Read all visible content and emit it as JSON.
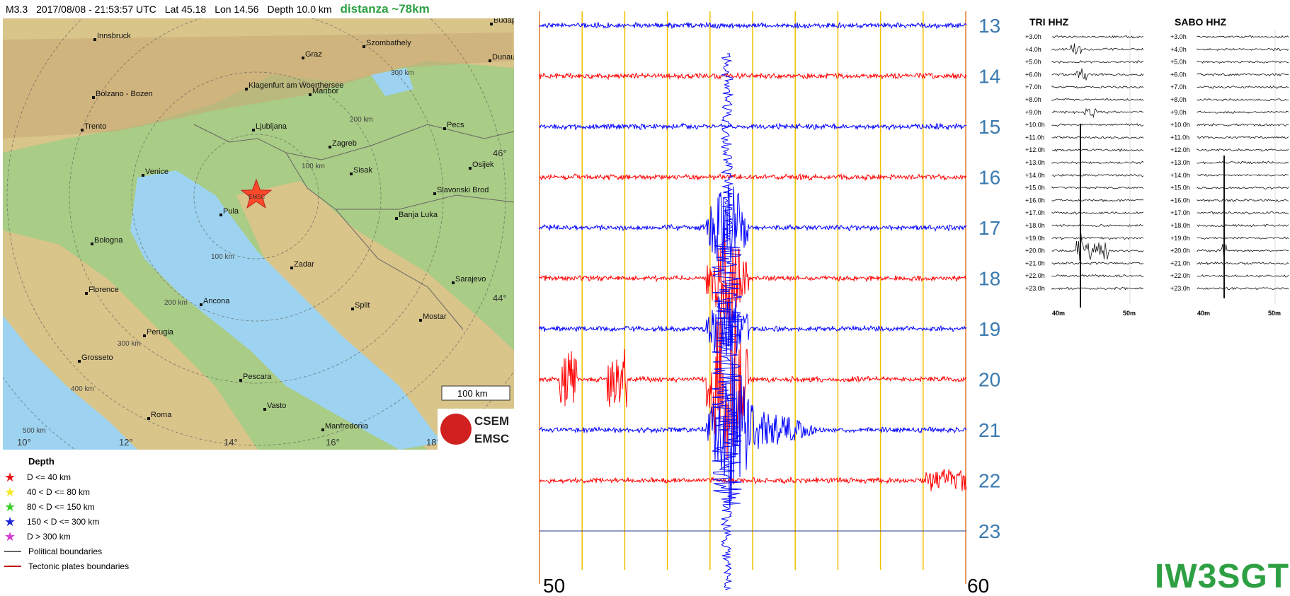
{
  "header": {
    "magnitude": "M3.3",
    "datetime": "2017/08/08 - 21:53:57 UTC",
    "lat": "Lat 45.18",
    "lon": "Lon 14.56",
    "depth": "Depth 10.0 km",
    "distance": "distanza ~78km"
  },
  "map": {
    "cities": [
      "Innsbruck",
      "Budapest",
      "Szombathely",
      "Dunaujv",
      "Graz",
      "Bolzano - Bozen",
      "Klagenfurt am Woerthersee",
      "Maribor",
      "Trento",
      "Ljubljana",
      "Pecs",
      "Zagreb",
      "Osijek",
      "Venice",
      "Sisak",
      "Slavonski Brod",
      "Pula",
      "Banja Luka",
      "Bologna",
      "Zadar",
      "Florence",
      "Ancona",
      "Sarajevo",
      "Split",
      "Perugia",
      "Mostar",
      "Grosseto",
      "Pescara",
      "Vasto",
      "Roma",
      "Manfredonia"
    ],
    "ring_labels": [
      "300 km",
      "200 km",
      "100 km",
      "100 km",
      "200 km",
      "300 km",
      "400 km",
      "500 km"
    ],
    "lat_labels": [
      "46°",
      "44°"
    ],
    "lon_labels": [
      "10°",
      "12°",
      "14°",
      "16°",
      "18°"
    ],
    "scale_bar": "100 km",
    "epicenter_label": "EMSC",
    "logo_top": "CSEM",
    "logo_bottom": "EMSC",
    "colors": {
      "sea": "#9dd3f0",
      "land": "#d9c48a",
      "hills": "#c9a874",
      "plain": "#a9cc86",
      "epicenter": "#ff4a2a"
    }
  },
  "legend": {
    "title": "Depth",
    "items": [
      {
        "label": "D <= 40 km",
        "color": "#e8161c"
      },
      {
        "label": "40 < D <= 80 km",
        "color": "#f5e92a"
      },
      {
        "label": "80 < D <= 150 km",
        "color": "#39d12a"
      },
      {
        "label": "150 < D <= 300 km",
        "color": "#1f24d6"
      },
      {
        "label": "D > 300 km",
        "color": "#d63ad6"
      }
    ],
    "political": "Political boundaries",
    "tectonic": "Tectonic plates boundaries",
    "political_color": "#666666",
    "tectonic_color": "#c00000"
  },
  "helicorder": {
    "hours": [
      "13",
      "14",
      "15",
      "16",
      "17",
      "18",
      "19",
      "20",
      "21",
      "22",
      "23"
    ],
    "x_start": "50",
    "x_end": "60",
    "colors": {
      "odd": "#0000ff",
      "even": "#ff0000",
      "grid": "#f0c000",
      "border": "#e07a30",
      "hour": "#3a7ab0"
    }
  },
  "stations": [
    {
      "name": "TRI HHZ",
      "rows": [
        "+3.0h",
        "+4.0h",
        "+5.0h",
        "+6.0h",
        "+7.0h",
        "+8.0h",
        "+9.0h",
        "+10.0h",
        "+11.0h",
        "+12.0h",
        "+13.0h",
        "+14.0h",
        "+15.0h",
        "+16.0h",
        "+17.0h",
        "+18.0h",
        "+19.0h",
        "+20.0h",
        "+21.0h",
        "+22.0h",
        "+23.0h"
      ],
      "xticks": [
        "40m",
        "50m"
      ]
    },
    {
      "name": "SABO HHZ",
      "rows": [
        "+3.0h",
        "+4.0h",
        "+5.0h",
        "+6.0h",
        "+7.0h",
        "+8.0h",
        "+9.0h",
        "+10.0h",
        "+11.0h",
        "+12.0h",
        "+13.0h",
        "+14.0h",
        "+15.0h",
        "+16.0h",
        "+17.0h",
        "+18.0h",
        "+19.0h",
        "+20.0h",
        "+21.0h",
        "+22.0h",
        "+23.0h"
      ],
      "xticks": [
        "40m",
        "50m"
      ]
    }
  ],
  "station_code": "IW3SGT"
}
